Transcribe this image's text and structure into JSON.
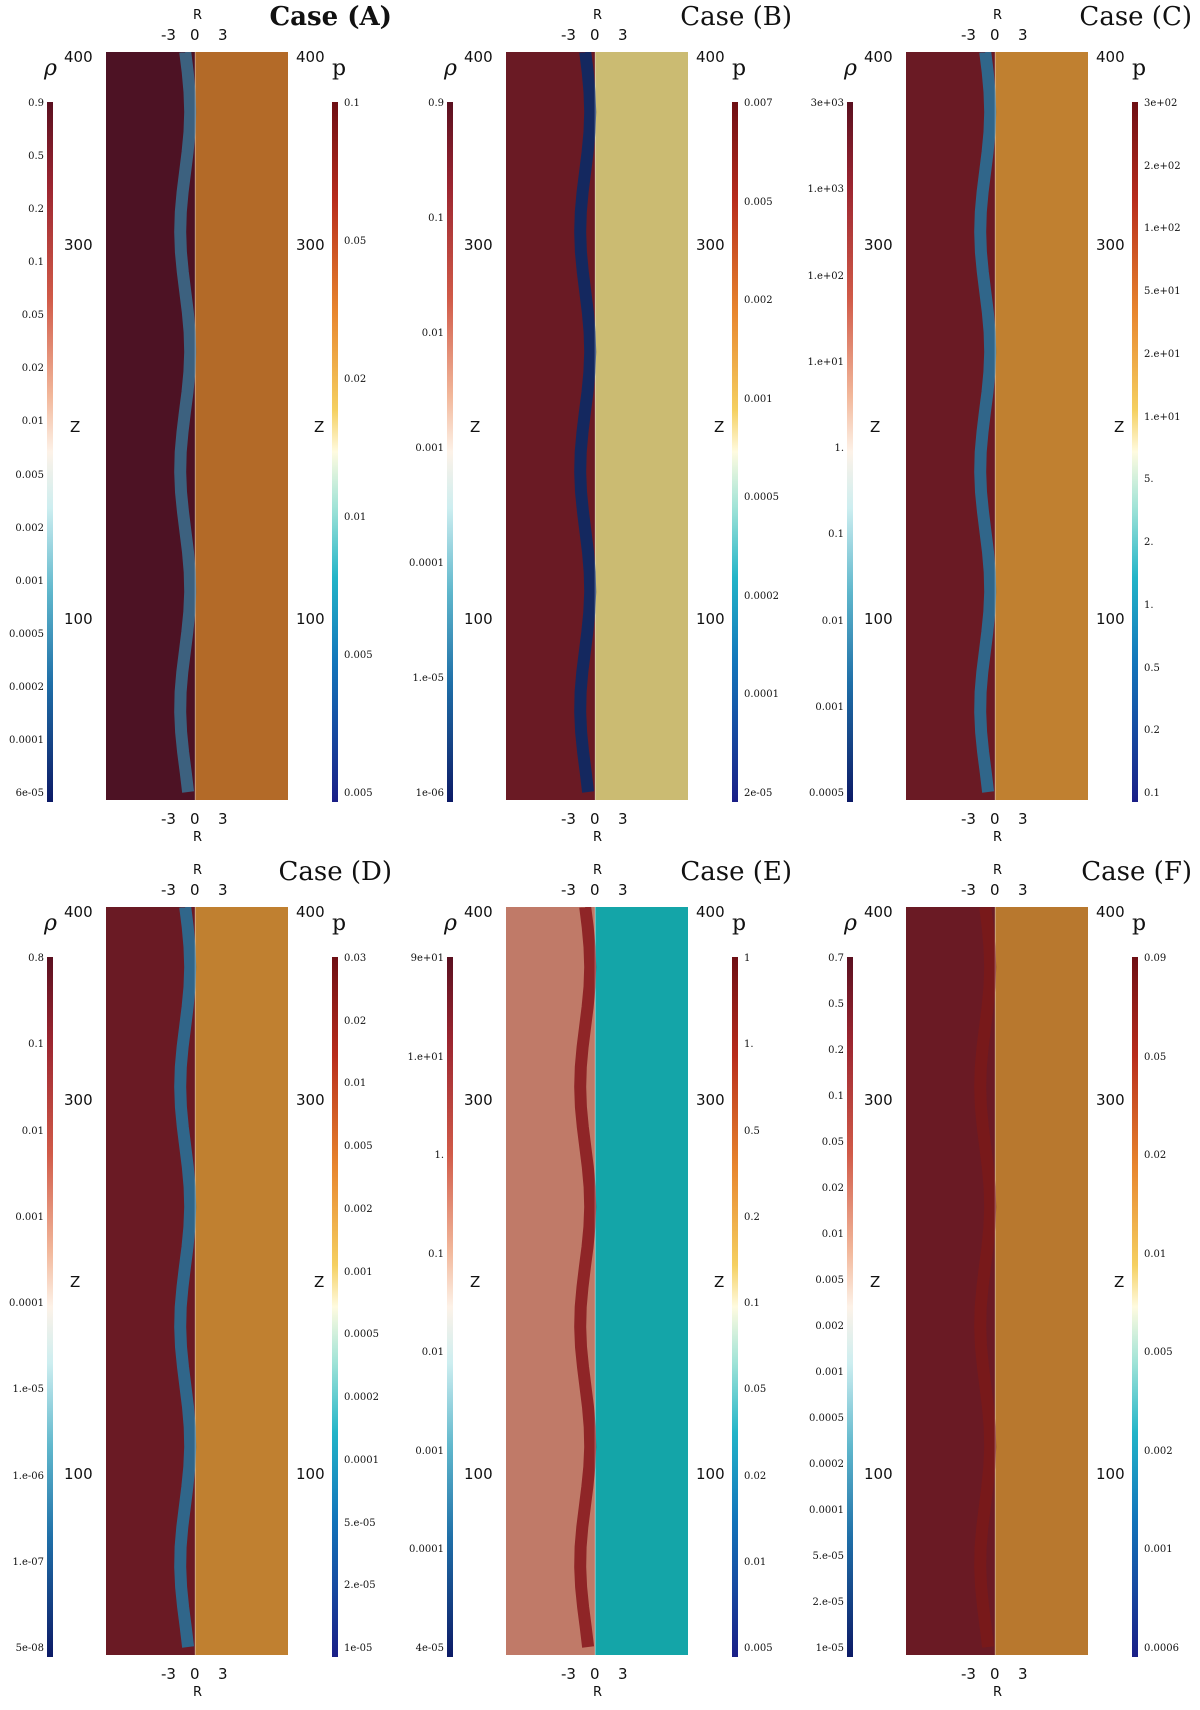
{
  "figure": {
    "panels": [
      {
        "id": "A",
        "title": "Case (A)",
        "bold": true,
        "r_axis_label": "R",
        "r_ticks": [
          "-3",
          "0",
          "3"
        ],
        "z_label": "Z",
        "z_ticks": [
          "400",
          "300",
          "100"
        ],
        "rho_label": "ρ",
        "p_label": "p",
        "rho_ticks": [
          "0.9",
          "0.5",
          "0.2",
          "0.1",
          "0.05",
          "0.02",
          "0.01",
          "0.005",
          "0.002",
          "0.001",
          "0.0005",
          "0.0002",
          "0.0001",
          "6e-05"
        ],
        "p_ticks": [
          "0.1",
          "0.05",
          "0.02",
          "0.01",
          "0.005",
          "0.005"
        ],
        "colors": {
          "left": "#4d1224",
          "right": "#b36a28",
          "jet": "#3b6a8a"
        }
      },
      {
        "id": "B",
        "title": "Case (B)",
        "bold": false,
        "r_axis_label": "R",
        "r_ticks": [
          "-3",
          "0",
          "3"
        ],
        "z_label": "Z",
        "z_ticks": [
          "400",
          "300",
          "100"
        ],
        "rho_label": "ρ",
        "p_label": "p",
        "rho_ticks": [
          "0.9",
          "0.1",
          "0.01",
          "0.001",
          "0.0001",
          "1.e-05",
          "1e-06"
        ],
        "p_ticks": [
          "0.007",
          "0.005",
          "0.002",
          "0.001",
          "0.0005",
          "0.0002",
          "0.0001",
          "2e-05"
        ],
        "colors": {
          "left": "#6a1a24",
          "right": "#cbbb72",
          "jet": "#0b2a66"
        }
      },
      {
        "id": "C",
        "title": "Case (C)",
        "bold": false,
        "r_axis_label": "R",
        "r_ticks": [
          "-3",
          "0",
          "3"
        ],
        "z_label": "Z",
        "z_ticks": [
          "400",
          "300",
          "100"
        ],
        "rho_label": "ρ",
        "p_label": "p",
        "rho_ticks": [
          "3e+03",
          "1.e+03",
          "1.e+02",
          "1.e+01",
          "1.",
          "0.1",
          "0.01",
          "0.001",
          "0.0005"
        ],
        "p_ticks": [
          "3e+02",
          "2.e+02",
          "1.e+02",
          "5.e+01",
          "2.e+01",
          "1.e+01",
          "5.",
          "2.",
          "1.",
          "0.5",
          "0.2",
          "0.1"
        ],
        "colors": {
          "left": "#6a1a24",
          "right": "#c08030",
          "jet": "#2a6f96"
        }
      },
      {
        "id": "D",
        "title": "Case (D)",
        "bold": false,
        "r_axis_label": "R",
        "r_ticks": [
          "-3",
          "0",
          "3"
        ],
        "z_label": "Z",
        "z_ticks": [
          "400",
          "300",
          "100"
        ],
        "rho_label": "ρ",
        "p_label": "p",
        "rho_ticks": [
          "0.8",
          "0.1",
          "0.01",
          "0.001",
          "0.0001",
          "1.e-05",
          "1.e-06",
          "1.e-07",
          "5e-08"
        ],
        "p_ticks": [
          "0.03",
          "0.02",
          "0.01",
          "0.005",
          "0.002",
          "0.001",
          "0.0005",
          "0.0002",
          "0.0001",
          "5.e-05",
          "2.e-05",
          "1e-05"
        ],
        "colors": {
          "left": "#6a1a24",
          "right": "#c08030",
          "jet": "#2a6f96"
        }
      },
      {
        "id": "E",
        "title": "Case (E)",
        "bold": false,
        "r_axis_label": "R",
        "r_ticks": [
          "-3",
          "0",
          "3"
        ],
        "z_label": "Z",
        "z_ticks": [
          "400",
          "300",
          "100"
        ],
        "rho_label": "ρ",
        "p_label": "p",
        "rho_ticks": [
          "9e+01",
          "1.e+01",
          "1.",
          "0.1",
          "0.01",
          "0.001",
          "0.0001",
          "4e-05"
        ],
        "p_ticks": [
          "1",
          "1.",
          "0.5",
          "0.2",
          "0.1",
          "0.05",
          "0.02",
          "0.01",
          "0.005"
        ],
        "colors": {
          "left": "#c07a68",
          "right": "#14a5a8",
          "jet": "#8a1c20"
        }
      },
      {
        "id": "F",
        "title": "Case (F)",
        "bold": false,
        "r_axis_label": "R",
        "r_ticks": [
          "-3",
          "0",
          "3"
        ],
        "z_label": "Z",
        "z_ticks": [
          "400",
          "300",
          "100"
        ],
        "rho_label": "ρ",
        "p_label": "p",
        "rho_ticks": [
          "0.7",
          "0.5",
          "0.2",
          "0.1",
          "0.05",
          "0.02",
          "0.01",
          "0.005",
          "0.002",
          "0.001",
          "0.0005",
          "0.0002",
          "0.0001",
          "5.e-05",
          "2.e-05",
          "1e-05"
        ],
        "p_ticks": [
          "0.09",
          "0.05",
          "0.02",
          "0.01",
          "0.005",
          "0.002",
          "0.001",
          "0.0006"
        ],
        "colors": {
          "left": "#6a1a24",
          "right": "#b8782e",
          "jet": "#7a1a1a"
        }
      }
    ]
  }
}
